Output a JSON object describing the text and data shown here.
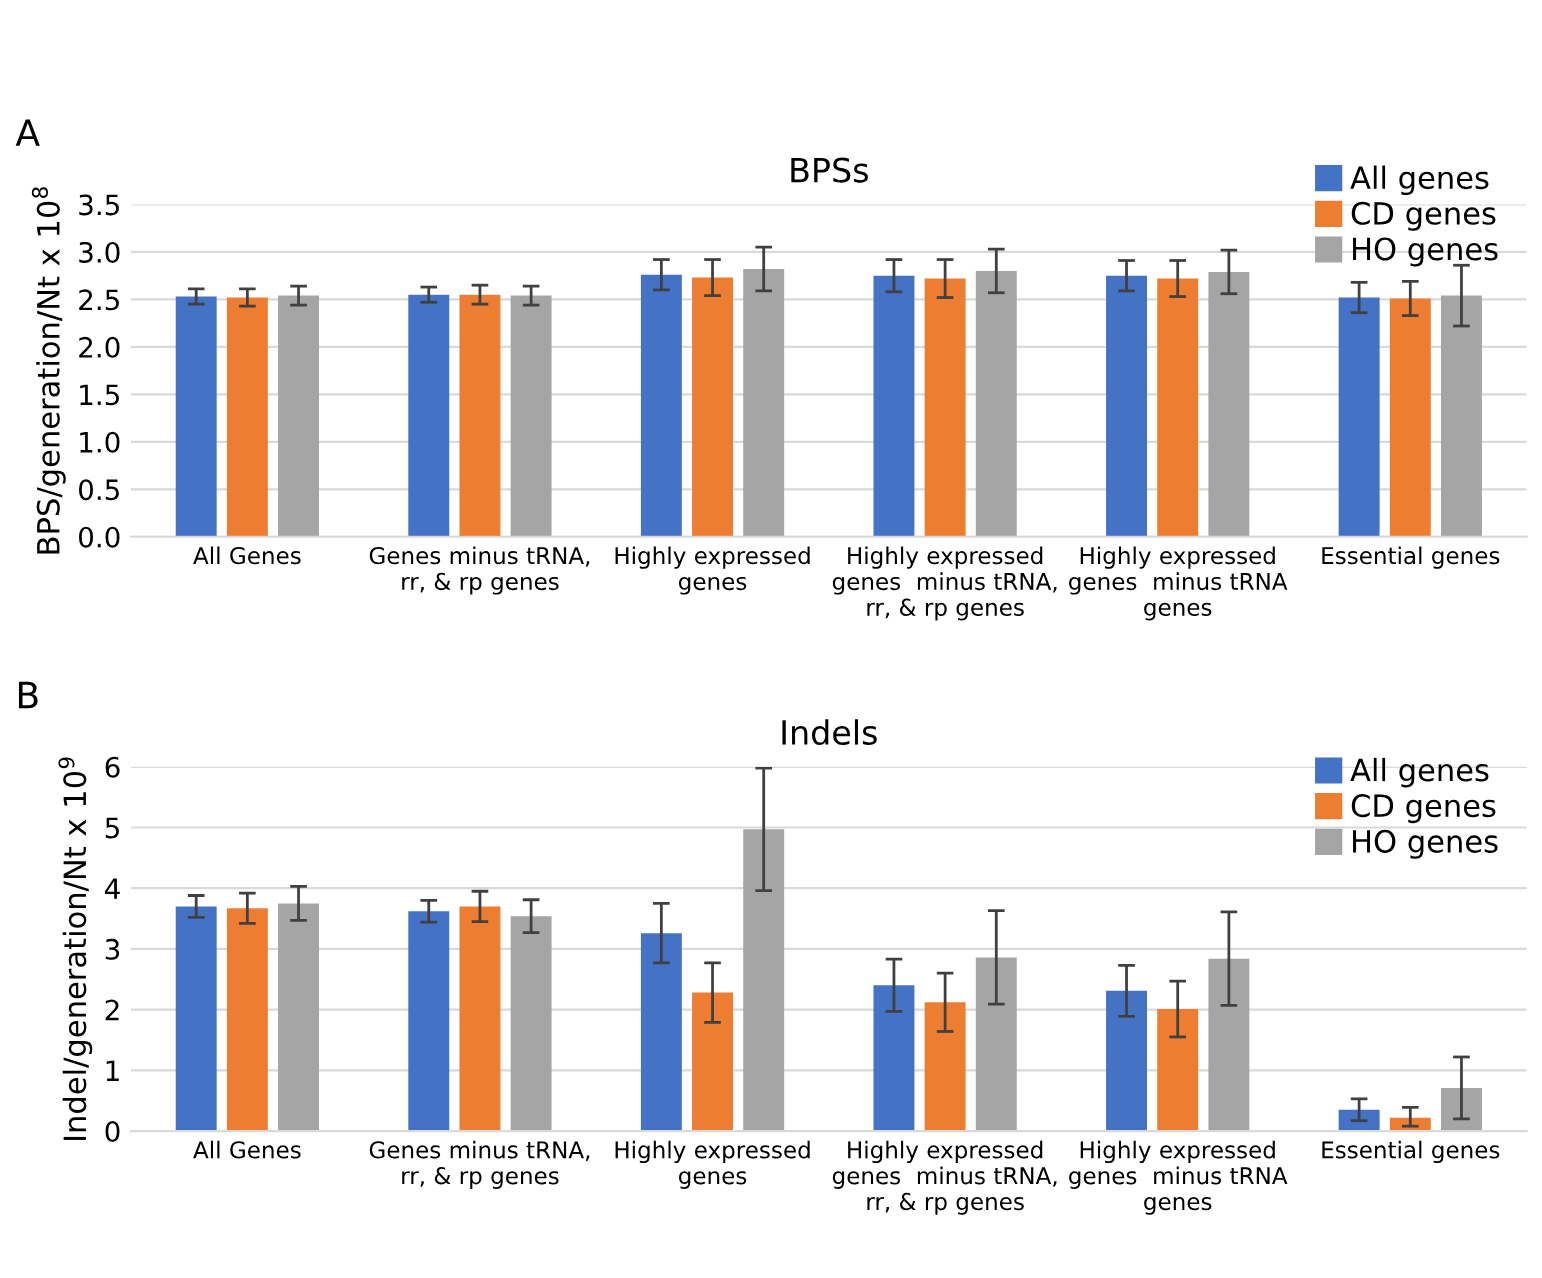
{
  "chart_data": [
    {
      "type": "bar",
      "title": "BPSs",
      "ylabel": "BPS/generation/Nt x 10$^{8}$",
      "annotations": [
        "A"
      ],
      "categories": [
        "All Genes",
        "Genes minus tRNA,\nrr, & rp genes",
        "Highly expressed\ngenes",
        "Highly expressed\ngenes  minus tRNA,\nrr, & rp genes",
        "Highly expressed\ngenes  minus tRNA\ngenes",
        "Essential genes"
      ],
      "series": [
        {
          "name": "All genes",
          "color": "#4472c4",
          "values": [
            2.53,
            2.55,
            2.76,
            2.75,
            2.75,
            2.52
          ],
          "errors": [
            0.08,
            0.08,
            0.16,
            0.17,
            0.16,
            0.16
          ]
        },
        {
          "name": "CD genes",
          "color": "#ed7d31",
          "values": [
            2.52,
            2.55,
            2.73,
            2.72,
            2.72,
            2.51
          ],
          "errors": [
            0.09,
            0.1,
            0.19,
            0.2,
            0.19,
            0.18
          ]
        },
        {
          "name": "HO genes",
          "color": "#a5a5a5",
          "values": [
            2.54,
            2.54,
            2.82,
            2.8,
            2.79,
            2.54
          ],
          "errors": [
            0.1,
            0.1,
            0.23,
            0.23,
            0.23,
            0.32
          ]
        }
      ],
      "ylim": [
        0,
        3.5
      ],
      "yticks": [
        {
          "value": 0,
          "label": "0.0"
        },
        {
          "value": 0.5,
          "label": "0.5"
        },
        {
          "value": 1,
          "label": "1.0"
        },
        {
          "value": 1.5,
          "label": "1.5"
        },
        {
          "value": 2,
          "label": "2.0"
        },
        {
          "value": 2.5,
          "label": "2.5"
        },
        {
          "value": 3,
          "label": "3.0"
        },
        {
          "value": 3.5,
          "label": "3.5"
        }
      ],
      "grid": "y",
      "legend": "top right"
    },
    {
      "type": "bar",
      "title": "Indels",
      "ylabel": "Indel/generation/Nt x 10$^{9}$",
      "annotations": [
        "B"
      ],
      "categories": [
        "All Genes",
        "Genes minus tRNA,\nrr, & rp genes",
        "Highly expressed\ngenes",
        "Highly expressed\ngenes  minus tRNA,\nrr, & rp genes",
        "Highly expressed\ngenes  minus tRNA\ngenes",
        "Essential genes"
      ],
      "series": [
        {
          "name": "All genes",
          "color": "#4472c4",
          "values": [
            3.7,
            3.62,
            3.26,
            2.4,
            2.31,
            0.35
          ],
          "errors": [
            0.18,
            0.18,
            0.49,
            0.43,
            0.42,
            0.18
          ]
        },
        {
          "name": "CD genes",
          "color": "#ed7d31",
          "values": [
            3.67,
            3.7,
            2.28,
            2.12,
            2.01,
            0.22
          ],
          "errors": [
            0.25,
            0.25,
            0.49,
            0.48,
            0.46,
            [
              0.14,
              0.17
            ]
          ]
        },
        {
          "name": "HO genes",
          "color": "#a5a5a5",
          "values": [
            3.75,
            3.54,
            4.97,
            2.86,
            2.84,
            0.71
          ],
          "errors": [
            0.28,
            0.27,
            1.01,
            0.77,
            0.77,
            0.51
          ]
        }
      ],
      "ylim": [
        0,
        6
      ],
      "yticks": [
        0,
        1,
        2,
        3,
        4,
        5,
        6
      ],
      "grid": "y",
      "legend": "top right"
    }
  ]
}
